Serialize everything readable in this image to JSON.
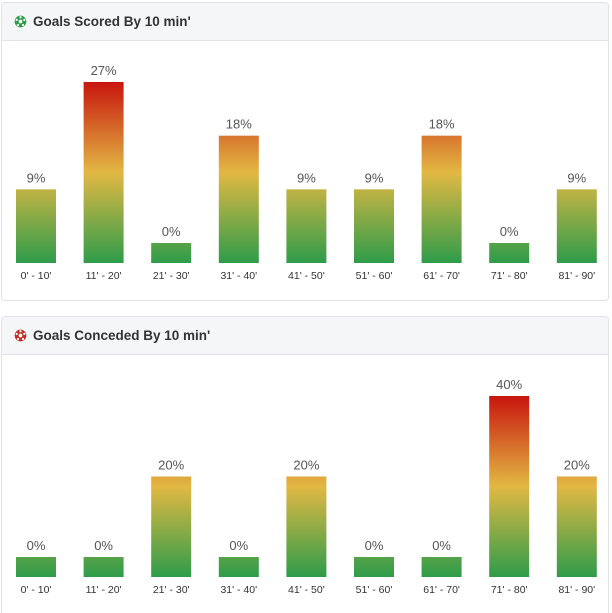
{
  "scored": {
    "title": "Goals Scored By 10 min'",
    "icon": "soccer-ball-green-icon",
    "icon_color": "#2e9c4a",
    "chart_data": {
      "type": "bar",
      "title": "Goals Scored By 10 min'",
      "categories": [
        "0' - 10'",
        "11' - 20'",
        "21' - 30'",
        "31' - 40'",
        "41' - 50'",
        "51' - 60'",
        "61' - 70'",
        "71' - 80'",
        "81' - 90'"
      ],
      "values": [
        9,
        27,
        0,
        18,
        9,
        9,
        18,
        0,
        9
      ],
      "labels": [
        "9%",
        "27%",
        "0%",
        "18%",
        "9%",
        "9%",
        "18%",
        "0%",
        "9%"
      ],
      "ylim": [
        0,
        27
      ],
      "grid": false
    }
  },
  "conceded": {
    "title": "Goals Conceded By 10 min'",
    "icon": "soccer-ball-red-icon",
    "icon_color": "#c0302a",
    "chart_data": {
      "type": "bar",
      "title": "Goals Conceded By 10 min'",
      "categories": [
        "0' - 10'",
        "11' - 20'",
        "21' - 30'",
        "31' - 40'",
        "41' - 50'",
        "51' - 60'",
        "61' - 70'",
        "71' - 80'",
        "81' - 90'"
      ],
      "values": [
        0,
        0,
        20,
        0,
        20,
        0,
        0,
        40,
        20
      ],
      "labels": [
        "0%",
        "0%",
        "20%",
        "0%",
        "20%",
        "0%",
        "0%",
        "40%",
        "20%"
      ],
      "ylim": [
        0,
        40
      ],
      "grid": false
    }
  },
  "colors": {
    "bar_bottom": "#2e9c4a",
    "bar_mid": "#e2b843",
    "bar_top": "#c8150e"
  }
}
